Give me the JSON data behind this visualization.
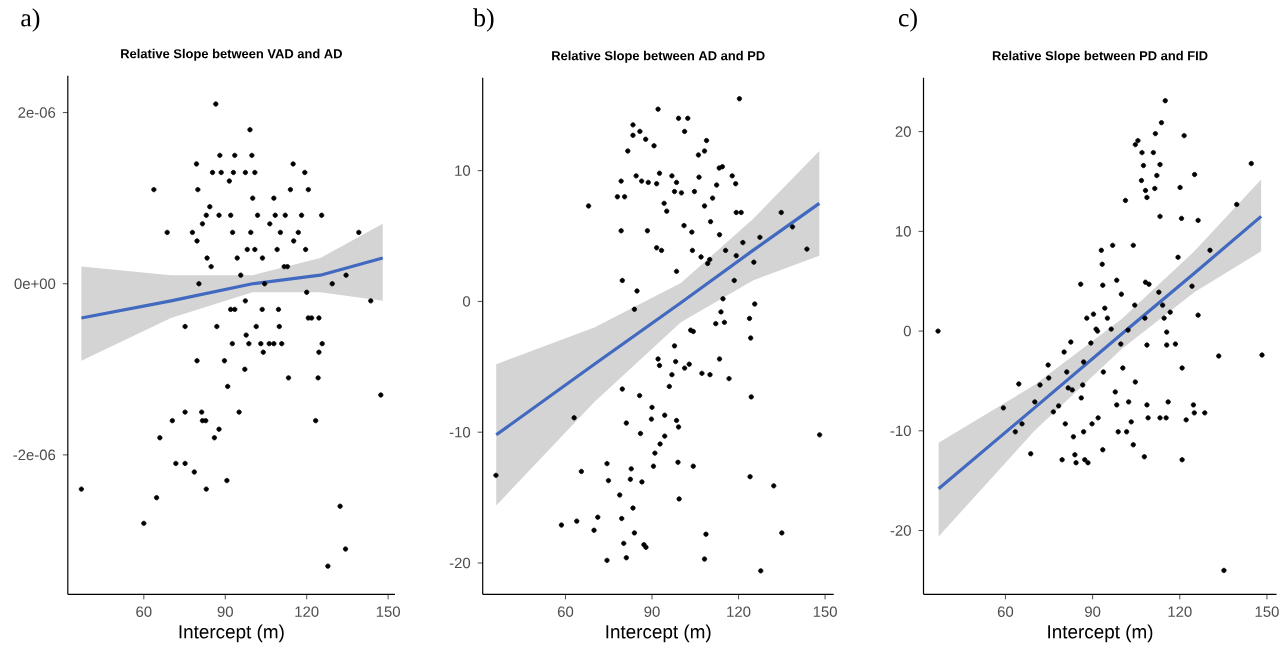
{
  "chart_data": [
    {
      "type": "scatter",
      "title": "Relative Slope between VAD and AD",
      "xlabel": "Intercept (m)",
      "annotations": [
        "a)"
      ],
      "grid": false,
      "xlim": [
        32,
        152.5
      ],
      "xticks": [
        60,
        90,
        120,
        150
      ],
      "ylim": [
        -3.63e-06,
        2.43e-06
      ],
      "yticks": [
        {
          "value": -2e-06,
          "label": "-2e-06"
        },
        {
          "value": 0,
          "label": "0e+00"
        },
        {
          "value": 2e-06,
          "label": "2e-06"
        }
      ],
      "series": [
        {
          "type": "scatter",
          "marker": "circle",
          "color": "#000000",
          "x": [
            37,
            63.7,
            68.6,
            60,
            64.7,
            65.9,
            70.5,
            71.8,
            75.2,
            75.2,
            75.2,
            78.6,
            79.6,
            79.4,
            79.9,
            77.9,
            79.6,
            80.3,
            81.3,
            81.6,
            82.8,
            83,
            86,
            87.7,
            86.9,
            86.5,
            88,
            85.3,
            88.5,
            84.3,
            87.7,
            83,
            81.6,
            83.3,
            84.8,
            89.7,
            90.6,
            90.9,
            92.6,
            95.1,
            92,
            93.5,
            91.5,
            93,
            93.5,
            92,
            92.7,
            94.4,
            95.7,
            98.1,
            99.1,
            99.8,
            97.4,
            100.1,
            99.4,
            100.9,
            97.4,
            97.7,
            97.2,
            98.7,
            101.4,
            103.1,
            103.6,
            104.5,
            104,
            106.2,
            107.9,
            103.7,
            101.9,
            100.9,
            107.9,
            106.4,
            108.4,
            110.3,
            109.1,
            111.7,
            112.9,
            109.6,
            109.9,
            110.8,
            113.3,
            115,
            114,
            112.1,
            116.9,
            115.2,
            118.1,
            119.3,
            120.6,
            119.6,
            120,
            120.6,
            121.8,
            123.3,
            124.2,
            124.5,
            125.7,
            124.5,
            125.5,
            129.4,
            132.3,
            134.3,
            127.8,
            134.5,
            139.2,
            143.6,
            147.3
          ],
          "values": [
            -2.4e-06,
            1.1e-06,
            6e-07,
            -2.8e-06,
            -2.5e-06,
            -1.8e-06,
            -1.6e-06,
            -2.1e-06,
            -2.1e-06,
            -1.5e-06,
            -5e-07,
            -2.2e-06,
            -9e-07,
            1.4e-06,
            1.1e-06,
            6e-07,
            5e-07,
            0.0,
            -1.5e-06,
            -1.6e-06,
            -1.6e-06,
            -2.4e-06,
            -1.8e-06,
            -1.7e-06,
            -5e-07,
            2.1e-06,
            1.5e-06,
            1.3e-06,
            1.3e-06,
            9e-07,
            8e-07,
            8e-07,
            7e-07,
            3e-07,
            2e-07,
            -9e-07,
            -2.3e-06,
            -1.2e-06,
            -7e-07,
            -1.5e-06,
            -3e-07,
            -3e-07,
            1.2e-06,
            1.3e-06,
            1.5e-06,
            8e-07,
            6e-07,
            3e-07,
            1e-07,
            4e-07,
            1.8e-06,
            1.5e-06,
            1.3e-06,
            1e-06,
            6e-07,
            4e-07,
            -2e-07,
            -6e-07,
            -1e-06,
            -7e-07,
            -5e-07,
            -7e-07,
            -3e-07,
            -0.0,
            -8e-07,
            -7e-07,
            -7e-07,
            3e-07,
            8e-07,
            1.3e-06,
            1e-06,
            7e-07,
            8e-07,
            6e-07,
            4e-07,
            2e-07,
            2e-07,
            -3e-07,
            -5e-07,
            -7e-07,
            -1.1e-06,
            1.4e-06,
            1.1e-06,
            8e-07,
            6e-07,
            5e-07,
            8e-07,
            1.3e-06,
            1.1e-06,
            4e-07,
            -1e-07,
            -4e-07,
            -4e-07,
            -1.6e-06,
            -1.1e-06,
            -8e-07,
            -7e-07,
            -4e-07,
            8e-07,
            -0.0,
            -2.6e-06,
            -3.1e-06,
            -3.3e-06,
            1e-07,
            6e-07,
            -2e-07,
            -1.3e-06
          ]
        },
        {
          "type": "line",
          "marker": "none",
          "color": "#4169c0",
          "x": [
            37,
            70,
            100,
            125,
            148
          ],
          "values": [
            -4e-07,
            -2e-07,
            -0.0,
            1e-07,
            3e-07
          ],
          "lower": [
            -9e-07,
            -4e-07,
            -1e-07,
            -1e-07,
            -2e-07
          ],
          "upper": [
            2e-07,
            1e-07,
            1e-07,
            3e-07,
            7e-07
          ]
        }
      ]
    },
    {
      "type": "scatter",
      "title": "Relative Slope between AD and PD",
      "xlabel": "Intercept (m)",
      "annotations": [
        "b)"
      ],
      "grid": false,
      "xlim": [
        31.3,
        153
      ],
      "xticks": [
        60,
        90,
        120,
        150
      ],
      "ylim": [
        -22.4,
        17.1
      ],
      "yticks": [
        -20,
        -10,
        0,
        10
      ],
      "series": [
        {
          "type": "scatter",
          "marker": "circle",
          "color": "#000000",
          "x": [
            35.9,
            63,
            68,
            65.5,
            58.6,
            63.9,
            69.9,
            71.2,
            74.4,
            74.4,
            74.9,
            78.8,
            79.5,
            80.2,
            81.1,
            81.1,
            79.7,
            79.7,
            79.3,
            78,
            80.5,
            79.3,
            81.6,
            83.4,
            83.4,
            84.8,
            83.9,
            82.5,
            82.8,
            83.4,
            83.9,
            85.7,
            86,
            86.5,
            87.2,
            87.9,
            84.5,
            86.4,
            88.7,
            85.8,
            87.8,
            88.4,
            90,
            89.8,
            90.5,
            91,
            92.1,
            92.6,
            91.6,
            93.3,
            91.6,
            90.7,
            92.1,
            92.6,
            92.8,
            94.4,
            94.4,
            94.2,
            95.1,
            96,
            96.9,
            96.9,
            98.5,
            97.8,
            97.8,
            98.2,
            98.5,
            99.2,
            99,
            99.4,
            98.5,
            99.2,
            101.3,
            102.4,
            101.1,
            100.2,
            101.3,
            102.9,
            103.4,
            104.3,
            104,
            103.8,
            104.7,
            106.3,
            104.3,
            106.1,
            108.2,
            108.9,
            108.2,
            107,
            109.3,
            110,
            107.3,
            108.2,
            108.7,
            110.1,
            110.3,
            111,
            112.4,
            113.3,
            114.4,
            113.4,
            115.5,
            112.1,
            113.9,
            114.6,
            115.1,
            113.4,
            116.7,
            118.5,
            119.2,
            119.2,
            119,
            117.8,
            120.3,
            120.9,
            121.5,
            123.8,
            124.2,
            125.6,
            124.4,
            124,
            127.4,
            125.3,
            132.2,
            134.8,
            135,
            138.7,
            143.7,
            148.1,
            127.7
          ],
          "values": [
            -13.3,
            -8.9,
            7.3,
            -13,
            -17.1,
            -16.8,
            -17.5,
            -16.5,
            -19.8,
            -12.4,
            -13.7,
            -14.8,
            -16.6,
            -18.5,
            -19.6,
            -9.3,
            -6.7,
            1.6,
            5.4,
            8,
            8,
            9.2,
            11.5,
            13.5,
            12.7,
            0.8,
            -0.6,
            -13.6,
            -12.8,
            -15.8,
            -17.7,
            -7.2,
            -10.1,
            -13.8,
            -18.6,
            -18.8,
            9.6,
            9.2,
            9.1,
            13,
            12.4,
            5.4,
            -8.1,
            -9,
            -12.6,
            -11.6,
            14.7,
            9.8,
            4.1,
            3.9,
            9,
            11.9,
            -4.4,
            -4.9,
            -10.9,
            -10.3,
            -8.7,
            7.5,
            6.9,
            -6.5,
            -5.6,
            9.6,
            9.1,
            8.4,
            -3.4,
            -4.6,
            -9.1,
            -9.6,
            -12.3,
            -15.1,
            2.3,
            14,
            13,
            14,
            5.8,
            8.3,
            -5.1,
            -4.8,
            -2.2,
            -2.3,
            3.9,
            5.3,
            8.4,
            9.5,
            -12.6,
            11.2,
            11.5,
            12.3,
            7.3,
            3.4,
            2.9,
            3.2,
            -5.5,
            -19.7,
            -17.8,
            -5.6,
            6.1,
            7.9,
            8.9,
            10.2,
            10.3,
            5.1,
            3.9,
            -1.7,
            -0.8,
            0.2,
            -1.6,
            -4.4,
            -5.9,
            1.6,
            3.5,
            6.8,
            9,
            9.6,
            15.5,
            6.8,
            4.5,
            -1.3,
            -2.8,
            -0.2,
            -7.3,
            -13.4,
            4.9,
            3,
            -14.1,
            6.8,
            -17.7,
            5.7,
            4,
            -10.2,
            -20.6
          ]
        },
        {
          "type": "line",
          "marker": "none",
          "color": "#4169c0",
          "x": [
            36,
            70,
            100,
            125,
            148
          ],
          "values": [
            -10.2,
            -4.8,
            -0.1,
            3.9,
            7.5
          ],
          "lower": [
            -15.6,
            -7.7,
            -1.6,
            1.6,
            3.5
          ],
          "upper": [
            -4.8,
            -2.0,
            1.4,
            6.3,
            11.5
          ]
        }
      ]
    },
    {
      "type": "scatter",
      "title": "Relative Slope between PD and FID",
      "xlabel": "Intercept (m)",
      "annotations": [
        "c)"
      ],
      "grid": false,
      "xlim": [
        31.8,
        153.3
      ],
      "xticks": [
        60,
        90,
        120,
        150
      ],
      "ylim": [
        -26.4,
        25.4
      ],
      "yticks": [
        -20,
        -10,
        0,
        10,
        20
      ],
      "series": [
        {
          "type": "scatter",
          "marker": "circle",
          "color": "#000000",
          "x": [
            36.8,
            59.3,
            63.4,
            64.6,
            65.7,
            68.7,
            70.1,
            71.9,
            74.7,
            74.9,
            76.5,
            78.3,
            79.5,
            80.2,
            80.6,
            81.1,
            81.6,
            82.5,
            83,
            83.4,
            83.9,
            84.3,
            85.9,
            86.1,
            86.6,
            86.9,
            86.9,
            87.3,
            88.4,
            88,
            89.4,
            89.8,
            90.3,
            91.2,
            91.7,
            91.9,
            93,
            93.3,
            93.5,
            94.2,
            95.1,
            93.7,
            93.5,
            96.4,
            96.9,
            97.8,
            98.3,
            98.8,
            98.3,
            99.9,
            99.7,
            100.4,
            101.3,
            102.2,
            101.7,
            102.4,
            103.3,
            104,
            104.5,
            104.7,
            104,
            104.7,
            105.6,
            107,
            106.8,
            107.5,
            108.7,
            108.2,
            108.2,
            109.4,
            108,
            108.7,
            108.7,
            109.1,
            107.8,
            110.9,
            111.6,
            112.1,
            111.4,
            113.2,
            113.7,
            115,
            113.2,
            112.8,
            114.1,
            114.6,
            115.5,
            115.5,
            116.7,
            116,
            113.2,
            115.3,
            118.5,
            119.4,
            120.1,
            120.6,
            121.5,
            120.8,
            120.8,
            122.2,
            124.2,
            124.7,
            125,
            125.1,
            126.3,
            126.3,
            128.6,
            130.4,
            133.4,
            135.2,
            139.6,
            144.6,
            148.3
          ],
          "values": [
            0,
            -7.7,
            -10.1,
            -5.3,
            -9.3,
            -12.3,
            -7.1,
            -5.4,
            -3.4,
            -4.7,
            -8.1,
            -7.5,
            -12.9,
            -2.1,
            -9.3,
            -4.1,
            -5.7,
            -1.1,
            -5.9,
            -10.6,
            -12.4,
            -13.2,
            4.7,
            -6.7,
            -5.4,
            -3.1,
            -10.1,
            -12.9,
            -13.2,
            1.3,
            -1.2,
            -9.3,
            1.7,
            0.2,
            0,
            -8.7,
            8.1,
            6.7,
            4.6,
            2.3,
            1.3,
            -4.1,
            -11.9,
            0.2,
            8.6,
            -6.1,
            -7.4,
            -10.1,
            5.1,
            3.7,
            -1.3,
            -3.7,
            13.1,
            0.1,
            -10.1,
            -7.1,
            -9.1,
            8.6,
            2.6,
            -5.1,
            -11.4,
            18.7,
            19.1,
            17.9,
            15.1,
            16.6,
            13.4,
            14.1,
            4.9,
            4.7,
            1.3,
            -1.4,
            -7.4,
            -8.7,
            -12.6,
            17.9,
            19.8,
            15.6,
            14.3,
            16.7,
            20.9,
            23.1,
            11.5,
            3.9,
            2.6,
            1.3,
            -0.1,
            -1.4,
            1.9,
            -7.1,
            -8.7,
            -8.7,
            -1.3,
            7.4,
            14.4,
            11.3,
            19.6,
            -3.7,
            -12.9,
            -8.9,
            4.5,
            -7.4,
            -8.2,
            15.7,
            1.6,
            11.1,
            -8.2,
            8.1,
            -2.5,
            -24,
            12.7,
            16.8,
            -2.4
          ]
        },
        {
          "type": "line",
          "marker": "none",
          "color": "#4169c0",
          "x": [
            37,
            70,
            100,
            125,
            148
          ],
          "values": [
            -15.8,
            -7.7,
            -0.3,
            5.8,
            11.5
          ],
          "lower": [
            -20.6,
            -10.0,
            -1.8,
            3.9,
            8.0
          ],
          "upper": [
            -11.2,
            -5.4,
            1.2,
            8.0,
            15.2
          ]
        }
      ]
    }
  ]
}
